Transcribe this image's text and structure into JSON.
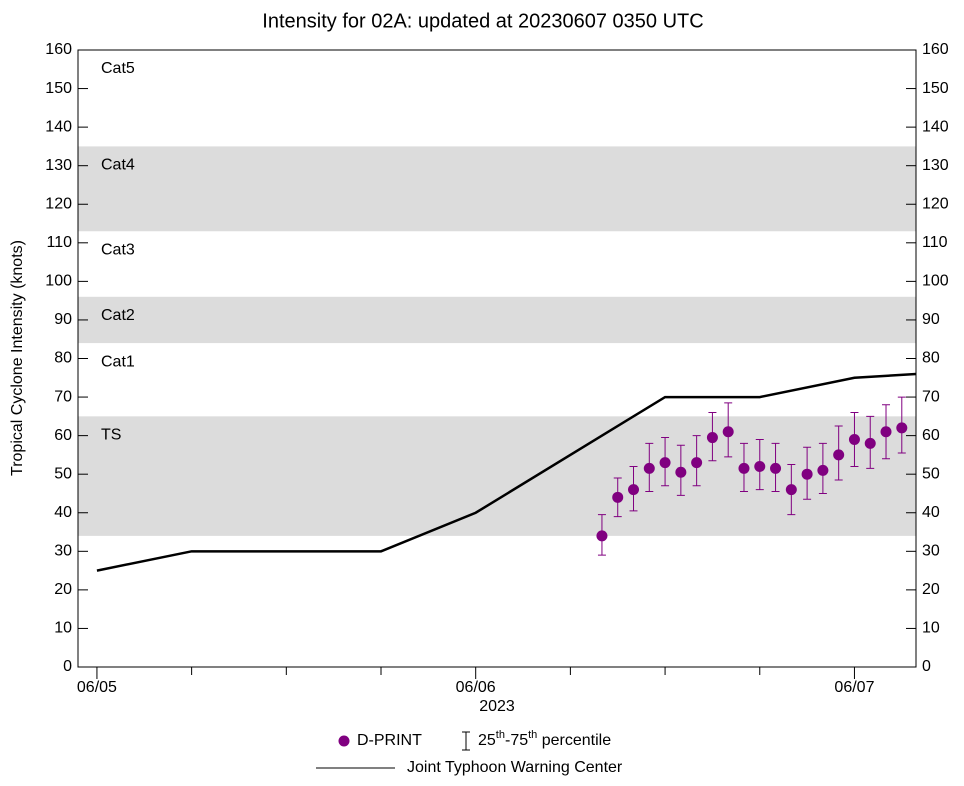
{
  "chart_data": {
    "type": "line",
    "title": "Intensity for 02A: updated at 20230607 0350 UTC",
    "y_label": "Tropical Cyclone Intensity (knots)",
    "x_label": "2023",
    "xlim": [
      -1.2,
      51.9
    ],
    "ylim": [
      0,
      160
    ],
    "xticks": [
      {
        "value": 0,
        "label": "06/05"
      },
      {
        "value": 24,
        "label": "06/06"
      },
      {
        "value": 48,
        "label": "06/07"
      }
    ],
    "xminor": [
      6,
      12,
      18,
      30,
      36,
      42
    ],
    "yticks": [
      0,
      10,
      20,
      30,
      40,
      50,
      60,
      70,
      80,
      90,
      100,
      110,
      120,
      130,
      140,
      150,
      160
    ],
    "bands": [
      {
        "name": "TS",
        "range": [
          34,
          65
        ],
        "shaded": true
      },
      {
        "name": "Cat1",
        "range": [
          65,
          84
        ],
        "shaded": false
      },
      {
        "name": "Cat2",
        "range": [
          84,
          96
        ],
        "shaded": true
      },
      {
        "name": "Cat3",
        "range": [
          96,
          113
        ],
        "shaded": false
      },
      {
        "name": "Cat4",
        "range": [
          113,
          135
        ],
        "shaded": true
      },
      {
        "name": "Cat5",
        "range": [
          135,
          160
        ],
        "shaded": false
      }
    ],
    "band_color": "#dcdcdc",
    "series": [
      {
        "name": "Joint Typhoon Warning Center",
        "color": "#000000",
        "kind": "line",
        "x": [
          0,
          6,
          18,
          24,
          36,
          42,
          48,
          52
        ],
        "values": [
          25,
          30,
          30,
          40,
          70,
          70,
          75,
          76
        ]
      },
      {
        "name": "D-PRINT",
        "color": "#800080",
        "kind": "points",
        "x": [
          32,
          33,
          34,
          35,
          36,
          37,
          38,
          39,
          40,
          41,
          42,
          43,
          44,
          45,
          46,
          47,
          48,
          49,
          50,
          51
        ],
        "values": [
          34,
          44,
          46,
          51.5,
          53,
          50.5,
          53,
          59.5,
          61,
          51.5,
          52,
          51.5,
          46,
          50,
          51,
          55,
          59,
          58,
          61,
          62
        ],
        "low": [
          29,
          39,
          40.5,
          45.5,
          47,
          44.5,
          47,
          53.5,
          54.5,
          45.5,
          46,
          45.5,
          39.5,
          43.5,
          45,
          48.5,
          52,
          51.5,
          54,
          55.5
        ],
        "high": [
          39.5,
          49,
          52,
          58,
          59.5,
          57.5,
          60,
          66,
          68.5,
          58,
          59,
          58,
          52.5,
          57,
          58,
          62.5,
          66,
          65,
          68,
          70
        ]
      }
    ],
    "errorbar_label_parts": [
      "25",
      "th",
      "-75",
      "th",
      " percentile"
    ]
  }
}
